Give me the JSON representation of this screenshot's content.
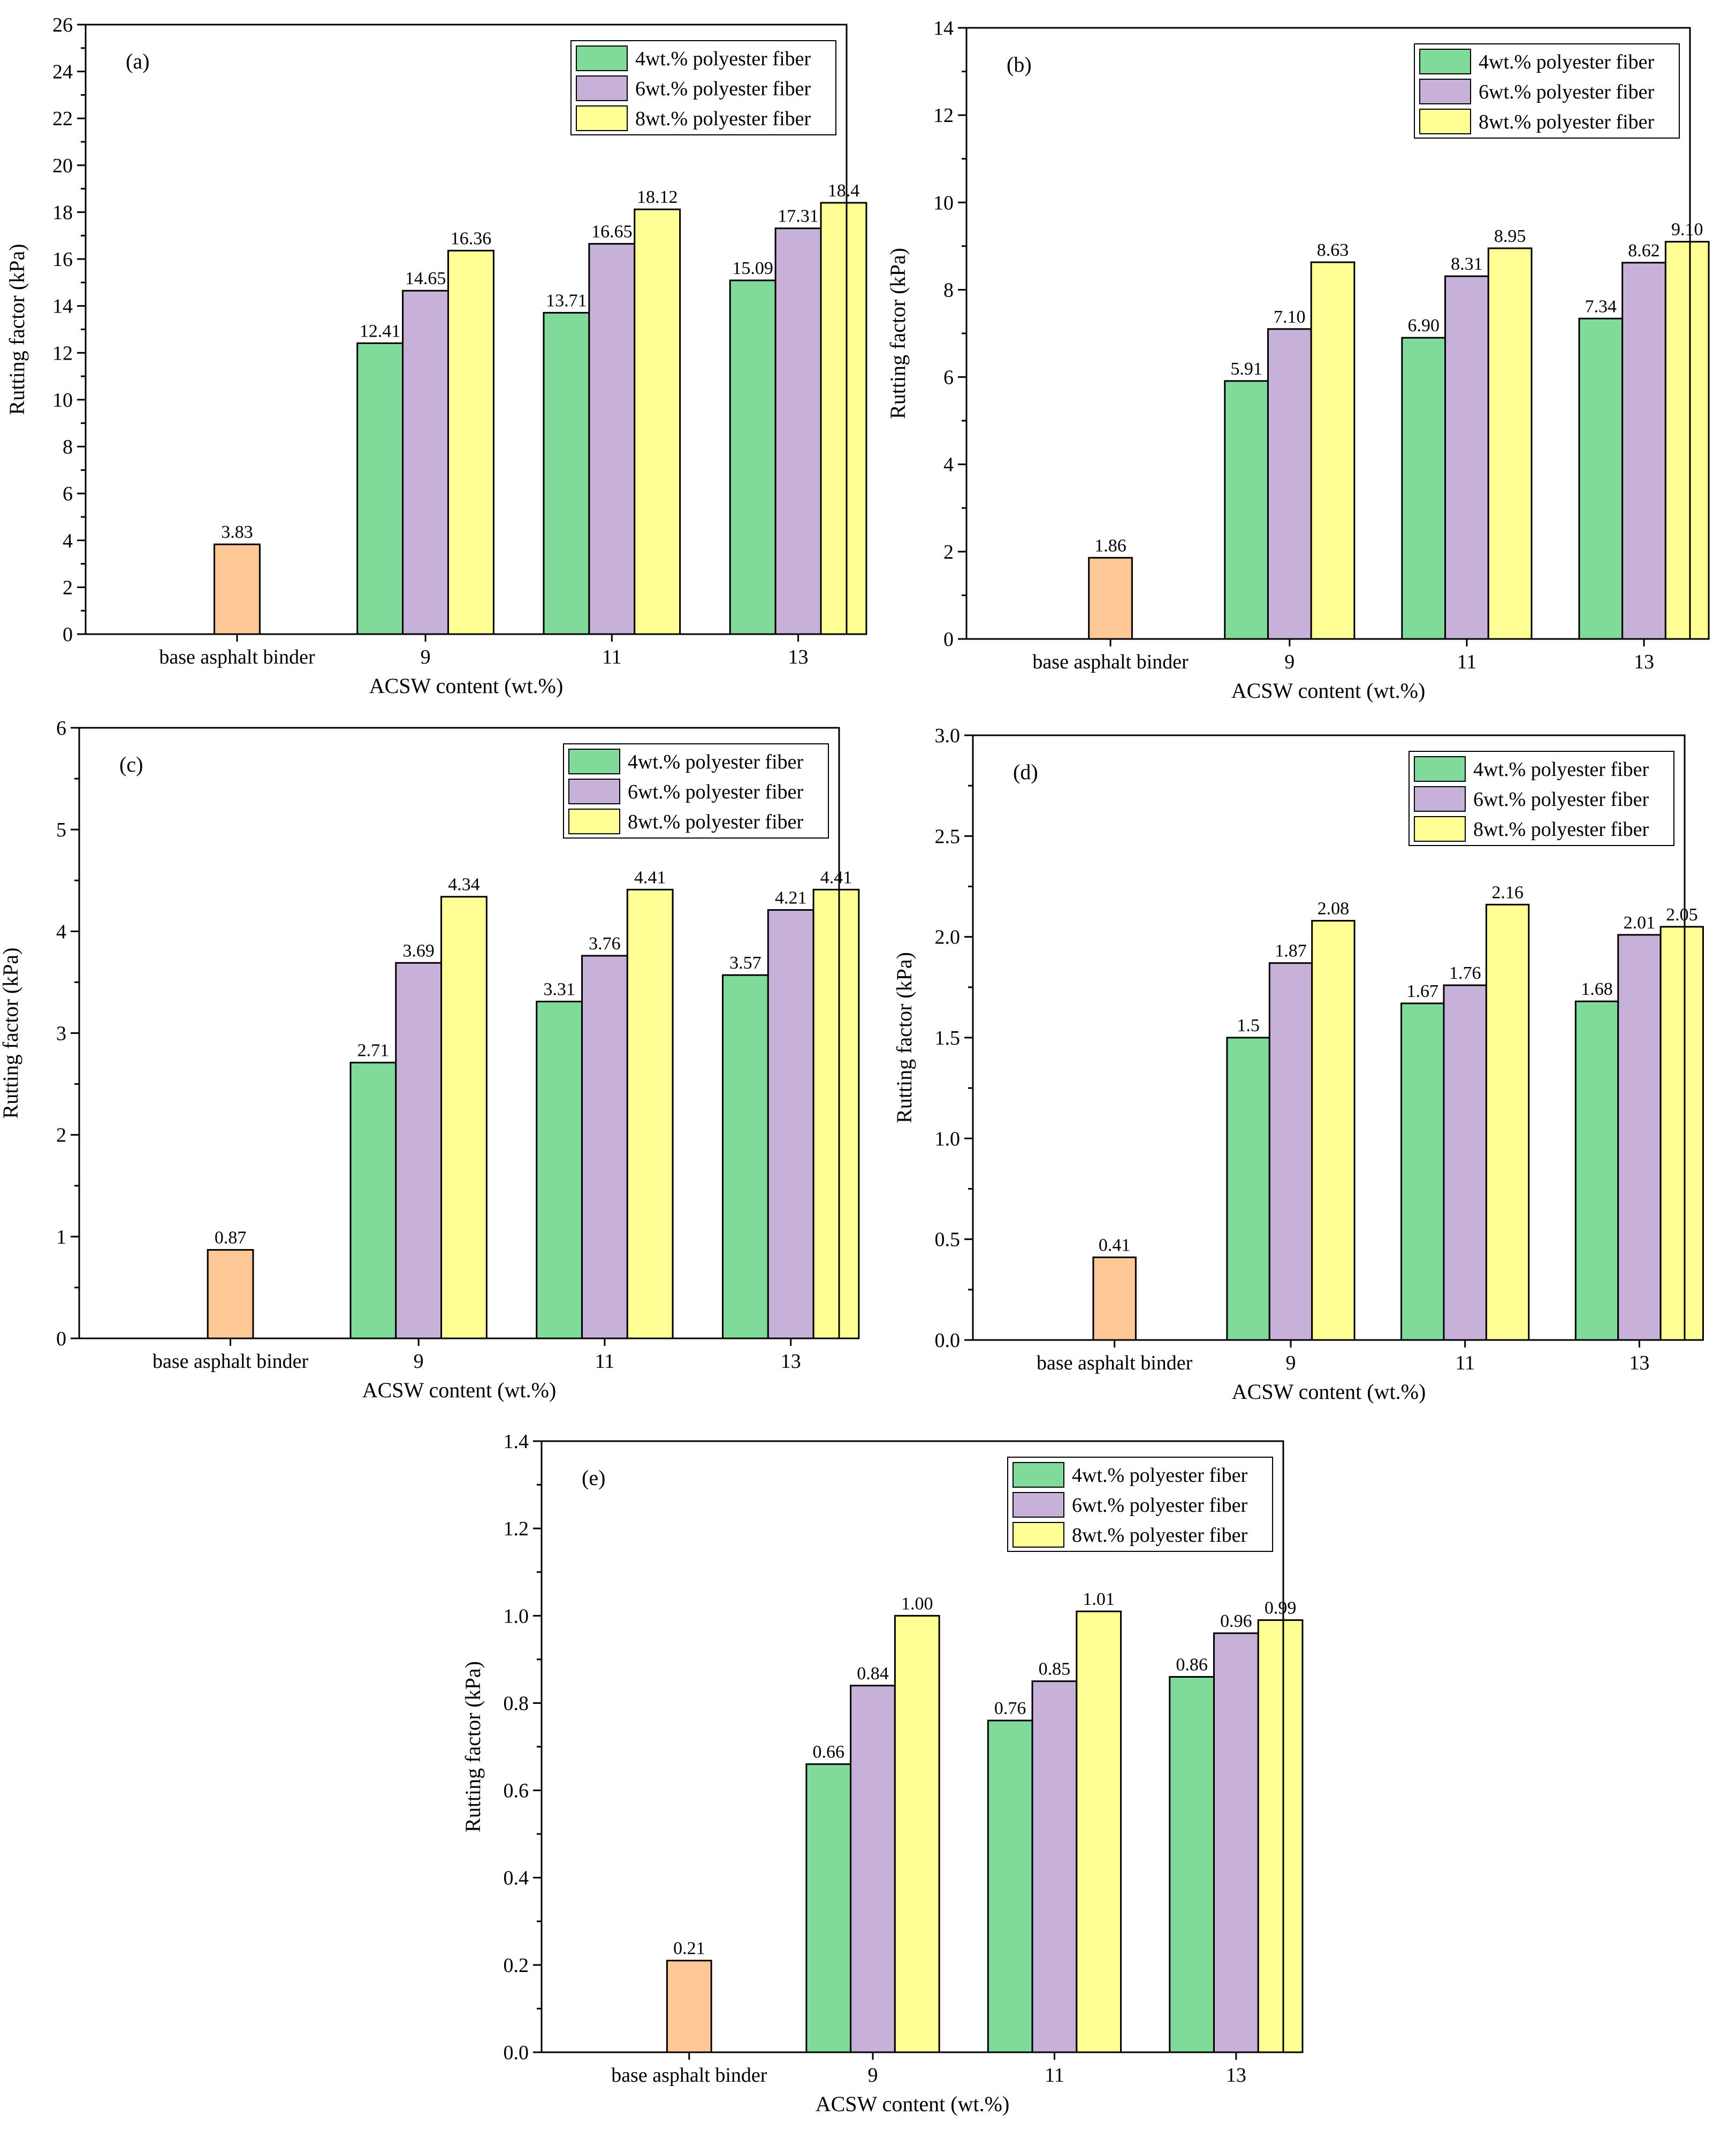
{
  "figure": {
    "y_axis_label": "Rutting factor (kPa)",
    "x_axis_label": "ACSW content (wt.%)",
    "categories": [
      "base asphalt binder",
      "9",
      "11",
      "13"
    ],
    "legend": [
      "4wt.% polyester fiber",
      "6wt.% polyester fiber",
      "8wt.% polyester fiber"
    ],
    "colors": {
      "base": "#FFC896",
      "fiber4": "#80DA9A",
      "fiber6": "#C8B1D8",
      "fiber8": "#FFFF96",
      "stroke": "#000000"
    }
  },
  "chart_data": [
    {
      "type": "bar",
      "title": "(a)",
      "xlabel": "ACSW content (wt.%)",
      "ylabel": "Rutting factor (kPa)",
      "ylim": [
        0,
        26
      ],
      "ytick_step": 2,
      "ytick_labels": [
        "0",
        "2",
        "4",
        "6",
        "8",
        "10",
        "12",
        "14",
        "16",
        "18",
        "20",
        "22",
        "24",
        "26"
      ],
      "base": {
        "value": 3.83,
        "label": "3.83"
      },
      "categories": [
        "9",
        "11",
        "13"
      ],
      "series": [
        {
          "name": "4wt.% polyester fiber",
          "values": [
            12.41,
            13.71,
            15.09
          ],
          "labels": [
            "12.41",
            "13.71",
            "15.09"
          ]
        },
        {
          "name": "6wt.% polyester fiber",
          "values": [
            14.65,
            16.65,
            17.31
          ],
          "labels": [
            "14.65",
            "16.65",
            "17.31"
          ]
        },
        {
          "name": "8wt.% polyester fiber",
          "values": [
            16.36,
            18.12,
            18.4
          ],
          "labels": [
            "16.36",
            "18.12",
            "18.4"
          ]
        }
      ]
    },
    {
      "type": "bar",
      "title": "(b)",
      "xlabel": "ACSW content (wt.%)",
      "ylabel": "Rutting factor (kPa)",
      "ylim": [
        0,
        14
      ],
      "ytick_step": 2,
      "ytick_labels": [
        "0",
        "2",
        "4",
        "6",
        "8",
        "10",
        "12",
        "14"
      ],
      "base": {
        "value": 1.86,
        "label": "1.86"
      },
      "categories": [
        "9",
        "11",
        "13"
      ],
      "series": [
        {
          "name": "4wt.% polyester fiber",
          "values": [
            5.91,
            6.9,
            7.34
          ],
          "labels": [
            "5.91",
            "6.90",
            "7.34"
          ]
        },
        {
          "name": "6wt.% polyester fiber",
          "values": [
            7.1,
            8.31,
            8.62
          ],
          "labels": [
            "7.10",
            "8.31",
            "8.62"
          ]
        },
        {
          "name": "8wt.% polyester fiber",
          "values": [
            8.63,
            8.95,
            9.1
          ],
          "labels": [
            "8.63",
            "8.95",
            "9.10"
          ]
        }
      ]
    },
    {
      "type": "bar",
      "title": "(c)",
      "xlabel": "ACSW content (wt.%)",
      "ylabel": "Rutting factor (kPa)",
      "ylim": [
        0,
        6
      ],
      "ytick_step": 1,
      "ytick_labels": [
        "0",
        "1",
        "2",
        "3",
        "4",
        "5",
        "6"
      ],
      "base": {
        "value": 0.87,
        "label": "0.87"
      },
      "categories": [
        "9",
        "11",
        "13"
      ],
      "series": [
        {
          "name": "4wt.% polyester fiber",
          "values": [
            2.71,
            3.31,
            3.57
          ],
          "labels": [
            "2.71",
            "3.31",
            "3.57"
          ]
        },
        {
          "name": "6wt.% polyester fiber",
          "values": [
            3.69,
            3.76,
            4.21
          ],
          "labels": [
            "3.69",
            "3.76",
            "4.21"
          ]
        },
        {
          "name": "8wt.% polyester fiber",
          "values": [
            4.34,
            4.41,
            4.41
          ],
          "labels": [
            "4.34",
            "4.41",
            "4.41"
          ]
        }
      ]
    },
    {
      "type": "bar",
      "title": "(d)",
      "xlabel": "ACSW content (wt.%)",
      "ylabel": "Rutting factor (kPa)",
      "ylim": [
        0,
        3.0
      ],
      "ytick_step": 0.5,
      "ytick_labels": [
        "0.0",
        "0.5",
        "1.0",
        "1.5",
        "2.0",
        "2.5",
        "3.0"
      ],
      "base": {
        "value": 0.41,
        "label": "0.41"
      },
      "categories": [
        "9",
        "11",
        "13"
      ],
      "series": [
        {
          "name": "4wt.% polyester fiber",
          "values": [
            1.5,
            1.67,
            1.68
          ],
          "labels": [
            "1.5",
            "1.67",
            "1.68"
          ]
        },
        {
          "name": "6wt.% polyester fiber",
          "values": [
            1.87,
            1.76,
            2.01
          ],
          "labels": [
            "1.87",
            "1.76",
            "2.01"
          ]
        },
        {
          "name": "8wt.% polyester fiber",
          "values": [
            2.08,
            2.16,
            2.05
          ],
          "labels": [
            "2.08",
            "2.16",
            "2.05"
          ]
        }
      ]
    },
    {
      "type": "bar",
      "title": "(e)",
      "xlabel": "ACSW content (wt.%)",
      "ylabel": "Rutting factor (kPa)",
      "ylim": [
        0,
        1.4
      ],
      "ytick_step": 0.2,
      "ytick_labels": [
        "0.0",
        "0.2",
        "0.4",
        "0.6",
        "0.8",
        "1.0",
        "1.2",
        "1.4"
      ],
      "base": {
        "value": 0.21,
        "label": "0.21"
      },
      "categories": [
        "9",
        "11",
        "13"
      ],
      "series": [
        {
          "name": "4wt.% polyester fiber",
          "values": [
            0.66,
            0.76,
            0.86
          ],
          "labels": [
            "0.66",
            "0.76",
            "0.86"
          ]
        },
        {
          "name": "6wt.% polyester fiber",
          "values": [
            0.84,
            0.85,
            0.96
          ],
          "labels": [
            "0.84",
            "0.85",
            "0.96"
          ]
        },
        {
          "name": "8wt.% polyester fiber",
          "values": [
            1.0,
            1.01,
            0.99
          ],
          "labels": [
            "1.00",
            "1.01",
            "0.99"
          ]
        }
      ]
    }
  ]
}
